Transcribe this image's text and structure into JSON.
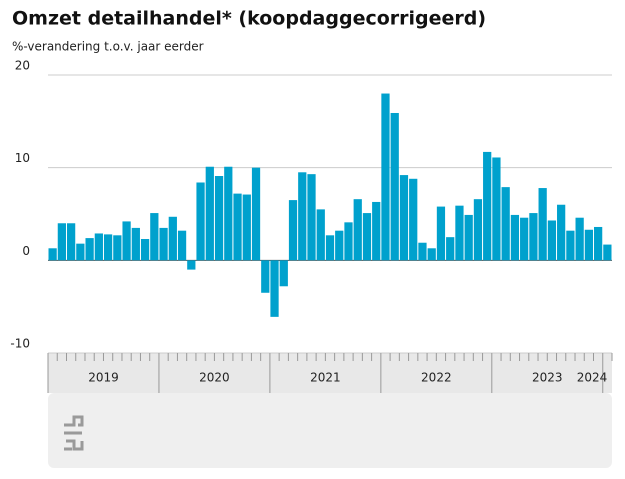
{
  "chart_data": {
    "type": "bar",
    "title": "Omzet detailhandel* (koopdaggecorrigeerd)",
    "subtitle": "%-verandering t.o.v. jaar eerder",
    "categories": [
      null,
      null,
      null,
      null,
      null,
      null,
      null,
      null,
      null,
      null,
      null,
      null,
      null,
      null,
      null,
      null,
      null,
      null,
      null,
      null,
      null,
      null,
      null,
      null,
      null,
      null,
      null,
      null,
      null,
      null,
      null,
      null,
      null,
      null,
      null,
      null,
      null,
      null,
      null,
      null,
      null,
      null,
      null,
      null,
      null,
      null,
      null,
      null,
      null,
      null,
      null,
      null,
      null,
      null,
      null,
      null,
      null,
      null,
      null,
      null,
      null
    ],
    "values": [
      1.3,
      4.0,
      4.0,
      1.8,
      2.4,
      2.9,
      2.8,
      2.7,
      4.2,
      3.5,
      2.3,
      5.1,
      3.5,
      4.7,
      3.2,
      -1.0,
      8.4,
      10.1,
      9.1,
      10.1,
      7.2,
      7.1,
      10.0,
      -3.5,
      -6.1,
      -2.8,
      6.5,
      9.5,
      9.3,
      5.5,
      2.7,
      3.2,
      4.1,
      6.6,
      5.1,
      6.3,
      18.0,
      15.9,
      9.2,
      8.8,
      1.9,
      1.3,
      5.8,
      2.5,
      5.9,
      4.9,
      6.6,
      11.7,
      11.1,
      7.9,
      4.9,
      4.6,
      5.1,
      7.8,
      4.3,
      6.0,
      3.2,
      4.6,
      3.3,
      3.6,
      1.7
    ],
    "year_labels": [
      "2019",
      "2020",
      "2021",
      "2022",
      "2023",
      "2024"
    ],
    "color": "#00a1cd",
    "ylim": [
      -10,
      20
    ],
    "yticks": [
      -10,
      0,
      10,
      20
    ],
    "grid": true
  }
}
